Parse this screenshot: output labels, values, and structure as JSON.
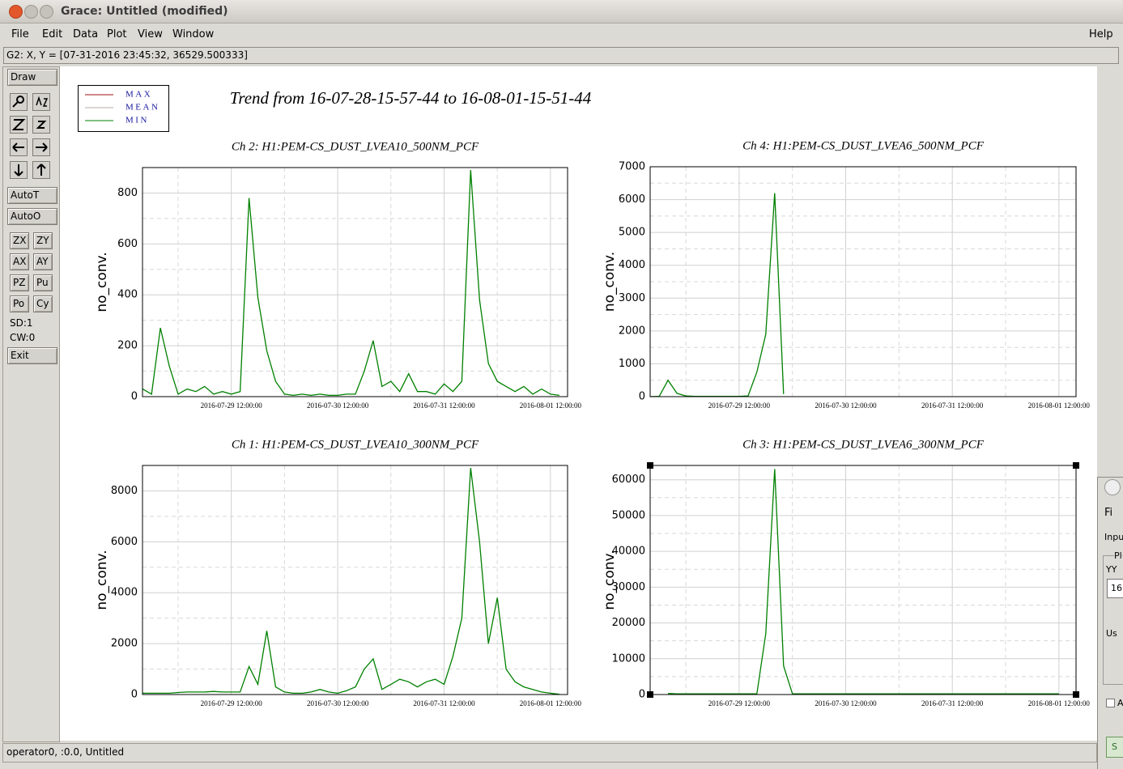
{
  "window": {
    "title": "Grace: Untitled (modified)"
  },
  "menu": [
    "File",
    "Edit",
    "Data",
    "Plot",
    "View",
    "Window"
  ],
  "help": "Help",
  "locator": "G2: X, Y = [07-31-2016 23:45:32, 36529.500333]",
  "toolbar": {
    "draw": "Draw",
    "autot": "AutoT",
    "autoo": "AutoO",
    "buttons": [
      "ZX",
      "ZY",
      "AX",
      "AY",
      "PZ",
      "Pu",
      "Po",
      "Cy"
    ],
    "sd": "SD:1",
    "cw": "CW:0",
    "exit": "Exit"
  },
  "status": "operator0, :0.0, Untitled",
  "side_dialog": {
    "menu": "Fi",
    "label": "Inpu",
    "group": "Pl",
    "field_label": "YY",
    "field_value": "16",
    "group2": "Us",
    "check": "A",
    "button": "S"
  },
  "figure": {
    "title": "Trend from 16-07-28-15-57-44 to 16-08-01-15-51-44",
    "legend": [
      {
        "name": "MAX",
        "color": "#a01010"
      },
      {
        "name": "MEAN",
        "color": "#b8a8a8"
      },
      {
        "name": "MIN",
        "color": "#008000"
      }
    ]
  },
  "chart_data": [
    {
      "type": "line",
      "title": "Ch 2: H1:PEM-CS_DUST_LVEA10_500NM_PCF",
      "y_label": "no_conv.",
      "color": "#008000",
      "xlim": [
        "2016-07-28 15:57:44",
        "2016-08-01 15:51:44"
      ],
      "xticks": [
        "2016-07-29 12:00:00",
        "2016-07-30 12:00:00",
        "2016-07-31 12:00:00",
        "2016-08-01 12:00:00"
      ],
      "xminorticks": [
        "2016-07-29 00:00:00",
        "2016-07-30 00:00:00",
        "2016-07-31 00:00:00",
        "2016-08-01 00:00:00"
      ],
      "ylim": [
        0,
        900
      ],
      "yticks": [
        0,
        200,
        400,
        600,
        800
      ],
      "yminorticks": [
        100,
        300,
        500,
        700
      ],
      "grid": true,
      "selected": false,
      "x": [
        "2016-07-28 16:00:00",
        "2016-07-28 18:00:00",
        "2016-07-28 20:00:00",
        "2016-07-28 22:00:00",
        "2016-07-29 00:00:00",
        "2016-07-29 02:00:00",
        "2016-07-29 04:00:00",
        "2016-07-29 06:00:00",
        "2016-07-29 08:00:00",
        "2016-07-29 10:00:00",
        "2016-07-29 12:00:00",
        "2016-07-29 14:00:00",
        "2016-07-29 16:00:00",
        "2016-07-29 18:00:00",
        "2016-07-29 20:00:00",
        "2016-07-29 22:00:00",
        "2016-07-30 00:00:00",
        "2016-07-30 02:00:00",
        "2016-07-30 04:00:00",
        "2016-07-30 06:00:00",
        "2016-07-30 08:00:00",
        "2016-07-30 10:00:00",
        "2016-07-30 12:00:00",
        "2016-07-30 14:00:00",
        "2016-07-30 16:00:00",
        "2016-07-30 18:00:00",
        "2016-07-30 20:00:00",
        "2016-07-30 22:00:00",
        "2016-07-31 00:00:00",
        "2016-07-31 02:00:00",
        "2016-07-31 04:00:00",
        "2016-07-31 06:00:00",
        "2016-07-31 08:00:00",
        "2016-07-31 10:00:00",
        "2016-07-31 12:00:00",
        "2016-07-31 14:00:00",
        "2016-07-31 16:00:00",
        "2016-07-31 18:00:00",
        "2016-07-31 20:00:00",
        "2016-07-31 22:00:00",
        "2016-08-01 00:00:00",
        "2016-08-01 02:00:00",
        "2016-08-01 04:00:00",
        "2016-08-01 06:00:00",
        "2016-08-01 08:00:00",
        "2016-08-01 10:00:00",
        "2016-08-01 12:00:00",
        "2016-08-01 14:00:00"
      ],
      "values": [
        30,
        10,
        270,
        120,
        10,
        30,
        20,
        40,
        10,
        20,
        10,
        20,
        780,
        390,
        180,
        60,
        10,
        5,
        10,
        5,
        10,
        5,
        5,
        10,
        10,
        100,
        220,
        40,
        60,
        20,
        90,
        20,
        20,
        10,
        50,
        20,
        60,
        890,
        380,
        130,
        60,
        40,
        20,
        40,
        10,
        30,
        10,
        5
      ]
    },
    {
      "type": "line",
      "title": "Ch 4: H1:PEM-CS_DUST_LVEA6_500NM_PCF",
      "y_label": "no_conv.",
      "color": "#008000",
      "xlim": [
        "2016-07-28 15:57:44",
        "2016-08-01 15:51:44"
      ],
      "xticks": [
        "2016-07-29 12:00:00",
        "2016-07-30 12:00:00",
        "2016-07-31 12:00:00",
        "2016-08-01 12:00:00"
      ],
      "xminorticks": [
        "2016-07-29 00:00:00",
        "2016-07-30 00:00:00",
        "2016-07-31 00:00:00",
        "2016-08-01 00:00:00"
      ],
      "ylim": [
        0,
        7000
      ],
      "yticks": [
        0,
        1000,
        2000,
        3000,
        4000,
        5000,
        6000,
        7000
      ],
      "yminorticks": [
        500,
        1500,
        2500,
        3500,
        4500,
        5500,
        6500
      ],
      "grid": true,
      "selected": false,
      "x": [
        "2016-07-28 16:00:00",
        "2016-07-28 18:00:00",
        "2016-07-28 20:00:00",
        "2016-07-28 22:00:00",
        "2016-07-29 00:00:00",
        "2016-07-29 02:00:00",
        "2016-07-29 04:00:00",
        "2016-07-29 06:00:00",
        "2016-07-29 08:00:00",
        "2016-07-29 10:00:00",
        "2016-07-29 12:00:00",
        "2016-07-29 14:00:00",
        "2016-07-29 16:00:00",
        "2016-07-29 18:00:00",
        "2016-07-29 20:00:00",
        "2016-07-29 22:00:00",
        "2016-07-30 00:00:00",
        "2016-07-30 02:00:00",
        "2016-07-30 04:00:00",
        "2016-07-30 06:00:00",
        "2016-07-30 08:00:00",
        "2016-07-30 10:00:00",
        "2016-07-30 12:00:00",
        "2016-07-30 14:00:00",
        "2016-07-30 16:00:00",
        "2016-07-30 18:00:00",
        "2016-07-30 20:00:00",
        "2016-07-30 22:00:00",
        "2016-07-31 00:00:00",
        "2016-07-31 02:00:00",
        "2016-07-31 04:00:00",
        "2016-07-31 06:00:00",
        "2016-07-31 08:00:00",
        "2016-07-31 10:00:00",
        "2016-07-31 12:00:00",
        "2016-07-31 14:00:00",
        "2016-07-31 16:00:00",
        "2016-07-31 18:00:00",
        "2016-07-31 20:00:00",
        "2016-07-31 22:00:00",
        "2016-08-01 00:00:00",
        "2016-08-01 02:00:00",
        "2016-08-01 04:00:00",
        "2016-08-01 06:00:00",
        "2016-08-01 08:00:00",
        "2016-08-01 10:00:00",
        "2016-08-01 12:00:00",
        "2016-08-01 14:00:00"
      ],
      "values": [
        0,
        10,
        500,
        100,
        20,
        10,
        10,
        10,
        10,
        10,
        10,
        20,
        750,
        1900,
        6200,
        80,
        null,
        null,
        null,
        null,
        null,
        null,
        null,
        null,
        null,
        null,
        null,
        null,
        null,
        null,
        null,
        null,
        null,
        null,
        null,
        null,
        null,
        null,
        null,
        null,
        null,
        null,
        null,
        null,
        null,
        null,
        null,
        null
      ]
    },
    {
      "type": "line",
      "title": "Ch 1: H1:PEM-CS_DUST_LVEA10_300NM_PCF",
      "y_label": "no_conv.",
      "color": "#008000",
      "xlim": [
        "2016-07-28 15:57:44",
        "2016-08-01 15:51:44"
      ],
      "xticks": [
        "2016-07-29 12:00:00",
        "2016-07-30 12:00:00",
        "2016-07-31 12:00:00",
        "2016-08-01 12:00:00"
      ],
      "xminorticks": [
        "2016-07-29 00:00:00",
        "2016-07-30 00:00:00",
        "2016-07-31 00:00:00",
        "2016-08-01 00:00:00"
      ],
      "ylim": [
        0,
        9000
      ],
      "yticks": [
        0,
        2000,
        4000,
        6000,
        8000
      ],
      "yminorticks": [
        1000,
        3000,
        5000,
        7000
      ],
      "grid": true,
      "selected": false,
      "x": [
        "2016-07-28 16:00:00",
        "2016-07-28 18:00:00",
        "2016-07-28 20:00:00",
        "2016-07-28 22:00:00",
        "2016-07-29 00:00:00",
        "2016-07-29 02:00:00",
        "2016-07-29 04:00:00",
        "2016-07-29 06:00:00",
        "2016-07-29 08:00:00",
        "2016-07-29 10:00:00",
        "2016-07-29 12:00:00",
        "2016-07-29 14:00:00",
        "2016-07-29 16:00:00",
        "2016-07-29 18:00:00",
        "2016-07-29 20:00:00",
        "2016-07-29 22:00:00",
        "2016-07-30 00:00:00",
        "2016-07-30 02:00:00",
        "2016-07-30 04:00:00",
        "2016-07-30 06:00:00",
        "2016-07-30 08:00:00",
        "2016-07-30 10:00:00",
        "2016-07-30 12:00:00",
        "2016-07-30 14:00:00",
        "2016-07-30 16:00:00",
        "2016-07-30 18:00:00",
        "2016-07-30 20:00:00",
        "2016-07-30 22:00:00",
        "2016-07-31 00:00:00",
        "2016-07-31 02:00:00",
        "2016-07-31 04:00:00",
        "2016-07-31 06:00:00",
        "2016-07-31 08:00:00",
        "2016-07-31 10:00:00",
        "2016-07-31 12:00:00",
        "2016-07-31 14:00:00",
        "2016-07-31 16:00:00",
        "2016-07-31 18:00:00",
        "2016-07-31 20:00:00",
        "2016-07-31 22:00:00",
        "2016-08-01 00:00:00",
        "2016-08-01 02:00:00",
        "2016-08-01 04:00:00",
        "2016-08-01 06:00:00",
        "2016-08-01 08:00:00",
        "2016-08-01 10:00:00",
        "2016-08-01 12:00:00",
        "2016-08-01 14:00:00"
      ],
      "values": [
        50,
        50,
        50,
        50,
        80,
        100,
        100,
        100,
        120,
        100,
        100,
        100,
        1100,
        400,
        2500,
        300,
        100,
        50,
        50,
        100,
        200,
        100,
        50,
        150,
        300,
        1000,
        1400,
        200,
        400,
        600,
        500,
        300,
        500,
        600,
        400,
        1500,
        3000,
        8900,
        6000,
        2000,
        3800,
        1000,
        500,
        300,
        200,
        100,
        50,
        10
      ]
    },
    {
      "type": "line",
      "title": "Ch 3: H1:PEM-CS_DUST_LVEA6_300NM_PCF",
      "y_label": "no_conv.",
      "color": "#008000",
      "xlim": [
        "2016-07-28 15:57:44",
        "2016-08-01 15:51:44"
      ],
      "xticks": [
        "2016-07-29 12:00:00",
        "2016-07-30 12:00:00",
        "2016-07-31 12:00:00",
        "2016-08-01 12:00:00"
      ],
      "xminorticks": [
        "2016-07-29 00:00:00",
        "2016-07-30 00:00:00",
        "2016-07-31 00:00:00",
        "2016-08-01 00:00:00"
      ],
      "ylim": [
        0,
        64000
      ],
      "yticks": [
        0,
        10000,
        20000,
        30000,
        40000,
        50000,
        60000
      ],
      "yminorticks": [
        5000,
        15000,
        25000,
        35000,
        45000,
        55000
      ],
      "grid": true,
      "selected": true,
      "x": [
        "2016-07-28 16:00:00",
        "2016-07-28 18:00:00",
        "2016-07-28 20:00:00",
        "2016-07-28 22:00:00",
        "2016-07-29 00:00:00",
        "2016-07-29 02:00:00",
        "2016-07-29 04:00:00",
        "2016-07-29 06:00:00",
        "2016-07-29 08:00:00",
        "2016-07-29 10:00:00",
        "2016-07-29 12:00:00",
        "2016-07-29 14:00:00",
        "2016-07-29 16:00:00",
        "2016-07-29 18:00:00",
        "2016-07-29 20:00:00",
        "2016-07-29 22:00:00",
        "2016-07-30 00:00:00",
        "2016-07-30 02:00:00",
        "2016-07-30 04:00:00",
        "2016-07-30 06:00:00",
        "2016-07-30 08:00:00",
        "2016-07-30 10:00:00",
        "2016-07-30 12:00:00",
        "2016-07-30 14:00:00",
        "2016-07-30 16:00:00",
        "2016-07-30 18:00:00",
        "2016-07-30 20:00:00",
        "2016-07-30 22:00:00",
        "2016-07-31 00:00:00",
        "2016-07-31 02:00:00",
        "2016-07-31 04:00:00",
        "2016-07-31 06:00:00",
        "2016-07-31 08:00:00",
        "2016-07-31 10:00:00",
        "2016-07-31 12:00:00",
        "2016-07-31 14:00:00",
        "2016-07-31 16:00:00",
        "2016-07-31 18:00:00",
        "2016-07-31 20:00:00",
        "2016-07-31 22:00:00",
        "2016-08-01 00:00:00",
        "2016-08-01 02:00:00",
        "2016-08-01 04:00:00",
        "2016-08-01 06:00:00",
        "2016-08-01 08:00:00",
        "2016-08-01 10:00:00",
        "2016-08-01 12:00:00",
        "2016-08-01 14:00:00"
      ],
      "values": [
        null,
        null,
        300,
        200,
        200,
        200,
        200,
        200,
        200,
        200,
        200,
        200,
        200,
        17000,
        63000,
        8000,
        200,
        200,
        200,
        200,
        200,
        200,
        200,
        200,
        200,
        200,
        200,
        200,
        200,
        200,
        200,
        200,
        200,
        200,
        200,
        200,
        200,
        200,
        200,
        200,
        200,
        200,
        200,
        200,
        200,
        200,
        200,
        null
      ]
    }
  ]
}
